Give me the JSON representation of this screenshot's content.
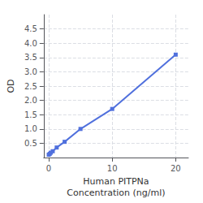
{
  "chart_data": {
    "type": "line",
    "xlabel": "Human PITPNa\nConcentration (ng/ml)",
    "ylabel": "OD",
    "x": [
      0,
      0.156,
      0.313,
      0.625,
      1.25,
      2.5,
      5,
      10,
      20
    ],
    "values": [
      0.1,
      0.13,
      0.17,
      0.22,
      0.35,
      0.55,
      1.0,
      1.7,
      3.6
    ],
    "marker": "square",
    "xlim": [
      -0.8,
      22
    ],
    "xticks": [
      0,
      10,
      20
    ],
    "ylim": [
      0,
      5.0
    ],
    "yticks": [
      0.5,
      {
        "value": 1.0,
        "label": "1.0"
      },
      1.5,
      {
        "value": 2.0,
        "label": "2.0"
      },
      2.5,
      {
        "value": 3.0,
        "label": "3.0"
      },
      3.5,
      {
        "value": 4.0,
        "label": "4.0"
      },
      4.5
    ],
    "grid": true
  }
}
